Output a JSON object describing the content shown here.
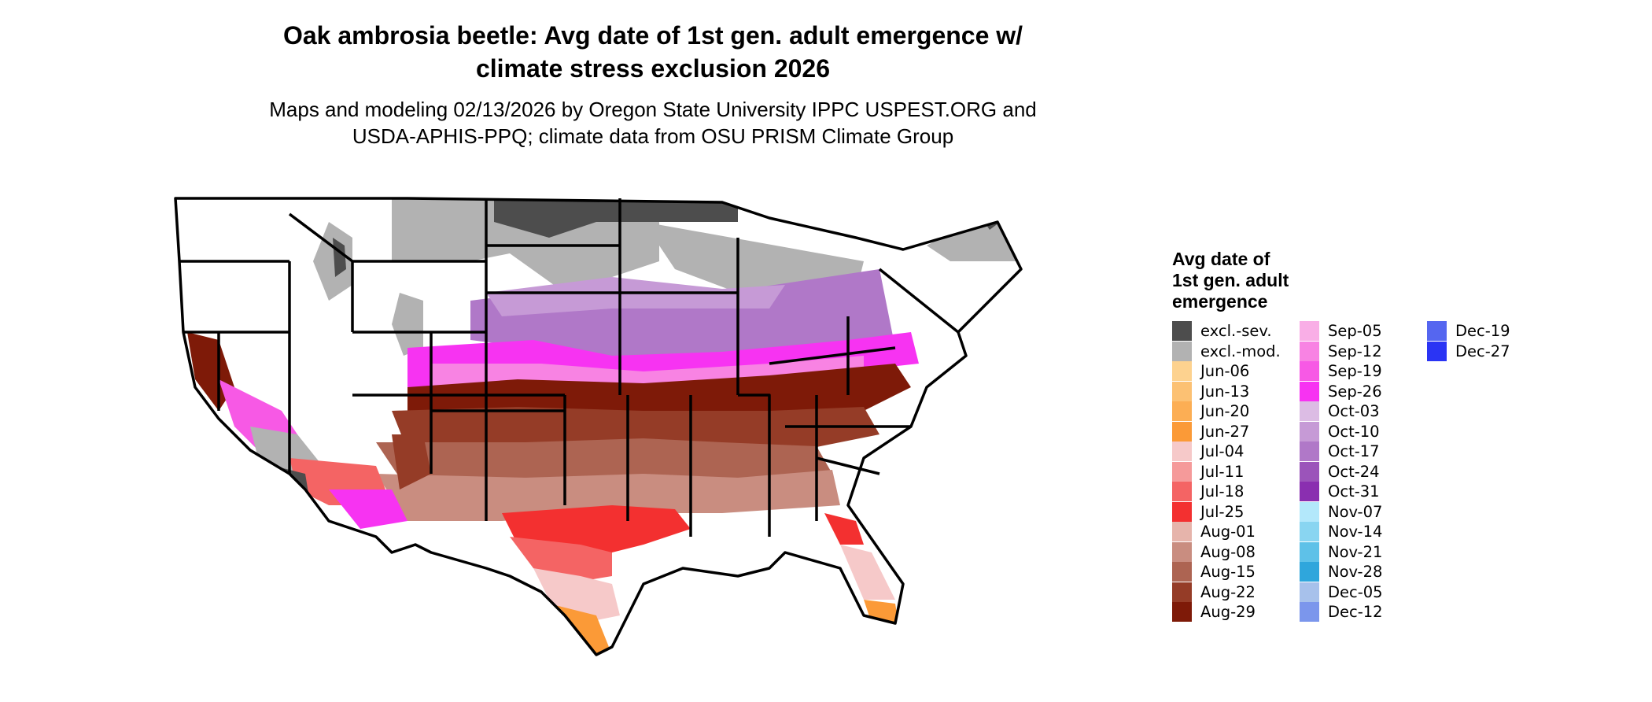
{
  "title": [
    "Oak ambrosia beetle: Avg date of 1st gen. adult emergence w/",
    "climate stress exclusion 2026"
  ],
  "subtitle": [
    "Maps and modeling 02/13/2026 by Oregon State University IPPC USPEST.ORG and",
    "USDA-APHIS-PPQ; climate data from OSU PRISM Climate Group"
  ],
  "legend": {
    "title": [
      "Avg date of",
      "1st gen. adult",
      "emergence"
    ],
    "items": [
      {
        "label": "excl.-sev.",
        "color": "#4d4d4d"
      },
      {
        "label": "excl.-mod.",
        "color": "#b2b2b2"
      },
      {
        "label": "Jun-06",
        "color": "#fdd28f"
      },
      {
        "label": "Jun-13",
        "color": "#fcc173"
      },
      {
        "label": "Jun-20",
        "color": "#fcae54"
      },
      {
        "label": "Jun-27",
        "color": "#fb9a37"
      },
      {
        "label": "Jul-04",
        "color": "#f6c9c9"
      },
      {
        "label": "Jul-11",
        "color": "#f59a9a"
      },
      {
        "label": "Jul-18",
        "color": "#f46464"
      },
      {
        "label": "Jul-25",
        "color": "#f33030"
      },
      {
        "label": "Aug-01",
        "color": "#e6b4ab"
      },
      {
        "label": "Aug-08",
        "color": "#c98d80"
      },
      {
        "label": "Aug-15",
        "color": "#ad6452"
      },
      {
        "label": "Aug-22",
        "color": "#953c27"
      },
      {
        "label": "Aug-29",
        "color": "#7e1a08"
      },
      {
        "label": "Sep-05",
        "color": "#f9aee6"
      },
      {
        "label": "Sep-12",
        "color": "#f883e3"
      },
      {
        "label": "Sep-19",
        "color": "#f759e5"
      },
      {
        "label": "Sep-26",
        "color": "#f733f2"
      },
      {
        "label": "Oct-03",
        "color": "#dcbce4"
      },
      {
        "label": "Oct-10",
        "color": "#c69ad6"
      },
      {
        "label": "Oct-17",
        "color": "#b078c8"
      },
      {
        "label": "Oct-24",
        "color": "#9b54ba"
      },
      {
        "label": "Oct-31",
        "color": "#8a2fb0"
      },
      {
        "label": "Nov-07",
        "color": "#b3e8fb"
      },
      {
        "label": "Nov-14",
        "color": "#89d5f1"
      },
      {
        "label": "Nov-21",
        "color": "#5ec1e8"
      },
      {
        "label": "Nov-28",
        "color": "#2fa6dc"
      },
      {
        "label": "Dec-05",
        "color": "#a7c1eb"
      },
      {
        "label": "Dec-12",
        "color": "#7b96ec"
      },
      {
        "label": "Dec-19",
        "color": "#5566f0"
      },
      {
        "label": "Dec-27",
        "color": "#2a34f4"
      }
    ]
  }
}
